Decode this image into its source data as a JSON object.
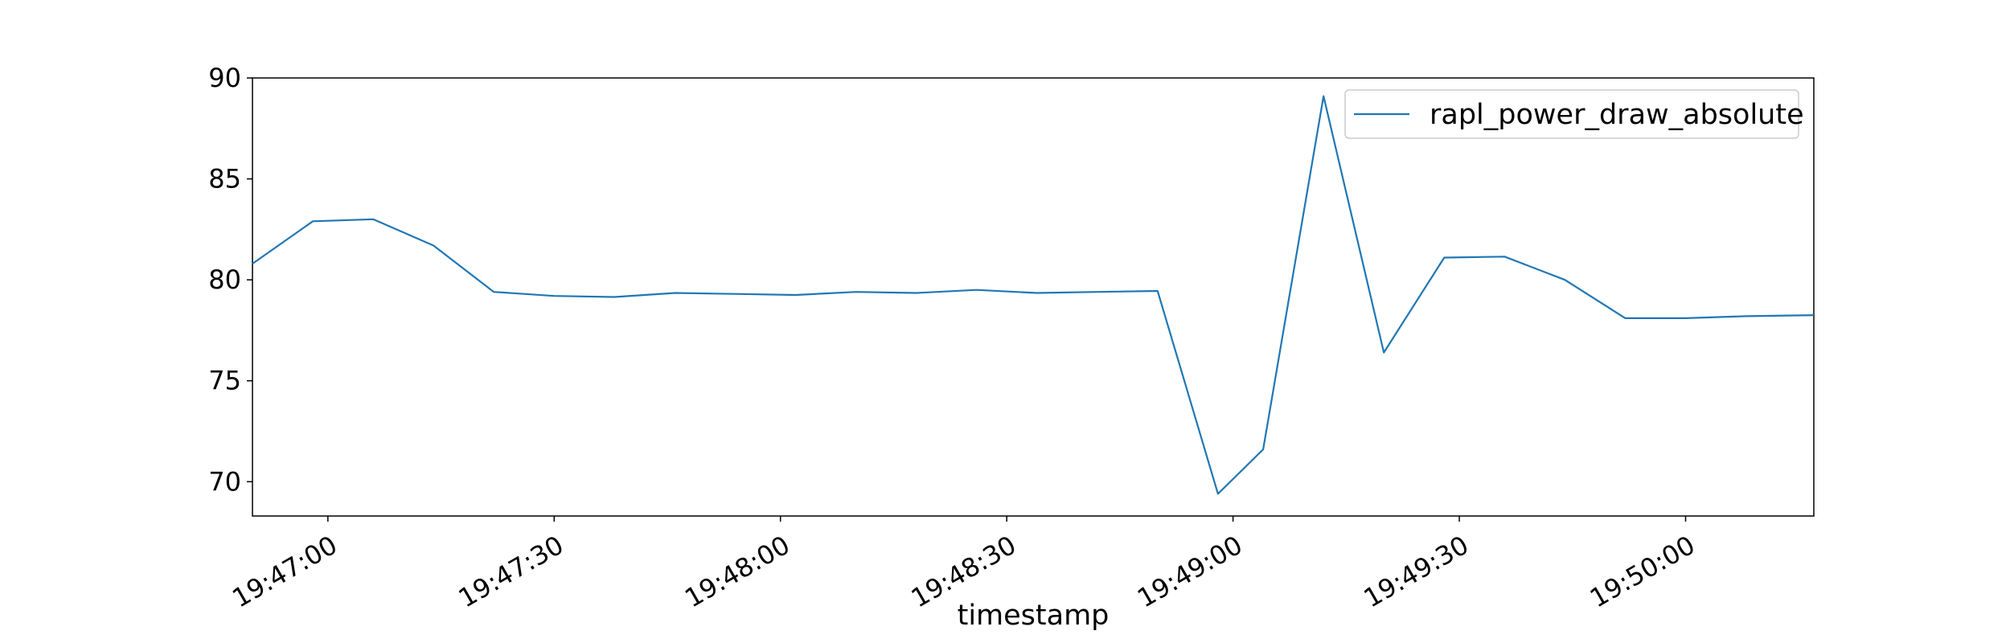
{
  "chart_data": {
    "type": "line",
    "title": "",
    "xlabel": "timestamp",
    "ylabel": "",
    "x_unit": "time",
    "xlim": [
      "19:46:50",
      "19:50:17"
    ],
    "ylim": [
      68.3,
      90.0
    ],
    "y_ticks": [
      70,
      75,
      80,
      85,
      90
    ],
    "x_ticks": [
      "19:47:00",
      "19:47:30",
      "19:48:00",
      "19:48:30",
      "19:49:00",
      "19:49:30",
      "19:50:00"
    ],
    "grid": false,
    "legend_position": "top-right",
    "series": [
      {
        "name": "rapl_power_draw_absolute",
        "color": "#1f77b4",
        "x": [
          "19:46:50",
          "19:46:58",
          "19:47:06",
          "19:47:14",
          "19:47:22",
          "19:47:30",
          "19:47:38",
          "19:47:46",
          "19:47:54",
          "19:48:02",
          "19:48:10",
          "19:48:18",
          "19:48:26",
          "19:48:34",
          "19:48:42",
          "19:48:50",
          "19:48:58",
          "19:49:04",
          "19:49:12",
          "19:49:20",
          "19:49:28",
          "19:49:36",
          "19:49:44",
          "19:49:52",
          "19:50:00",
          "19:50:08",
          "19:50:17"
        ],
        "y": [
          80.8,
          82.9,
          83.0,
          81.7,
          79.4,
          79.2,
          79.15,
          79.35,
          79.3,
          79.25,
          79.4,
          79.35,
          79.5,
          79.35,
          79.4,
          79.45,
          69.4,
          71.6,
          89.1,
          76.4,
          81.1,
          81.15,
          80.0,
          78.1,
          78.1,
          78.2,
          78.25
        ]
      }
    ]
  }
}
